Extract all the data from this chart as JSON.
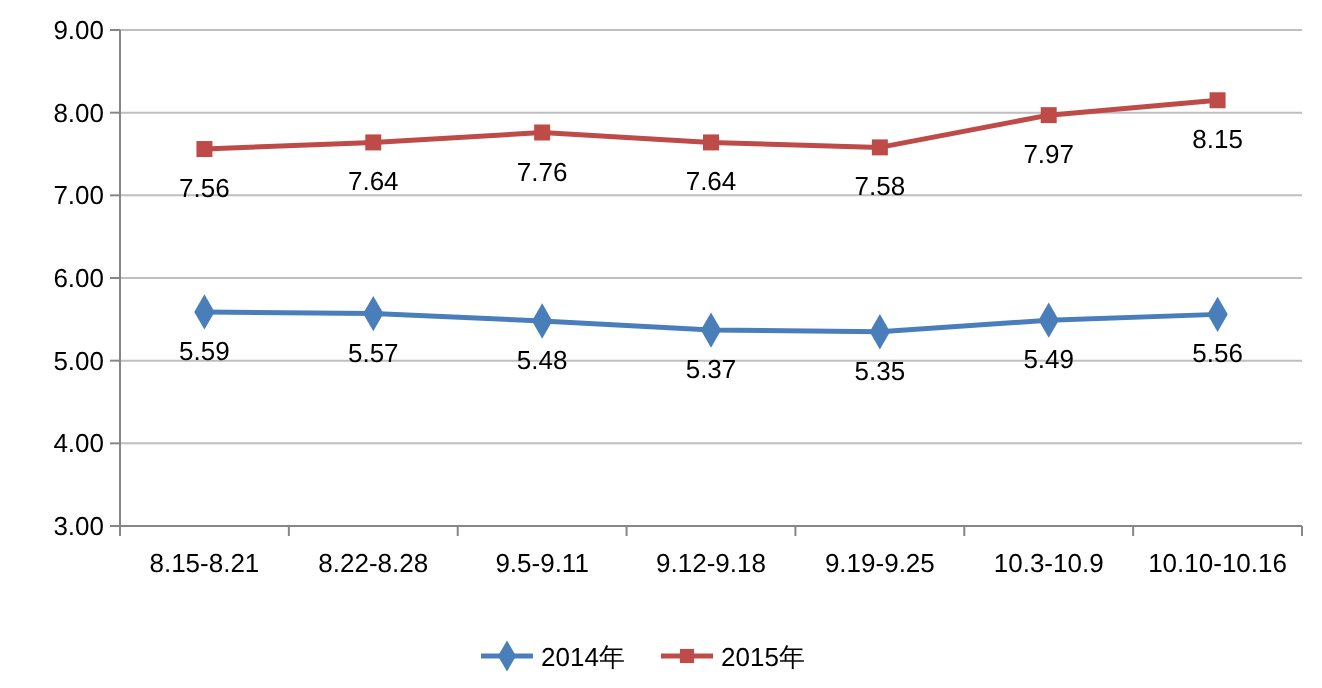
{
  "chart_data": {
    "type": "line",
    "categories": [
      "8.15-8.21",
      "8.22-8.28",
      "9.5-9.11",
      "9.12-9.18",
      "9.19-9.25",
      "10.3-10.9",
      "10.10-10.16"
    ],
    "series": [
      {
        "name": "2014年",
        "color": "#4a7ebb",
        "marker": "diamond",
        "values": [
          5.59,
          5.57,
          5.48,
          5.37,
          5.35,
          5.49,
          5.56
        ]
      },
      {
        "name": "2015年",
        "color": "#be4b48",
        "marker": "square",
        "values": [
          7.56,
          7.64,
          7.76,
          7.64,
          7.58,
          7.97,
          8.15
        ]
      }
    ],
    "ylim": [
      3,
      9
    ],
    "yticks": [
      {
        "value": 3,
        "label": "3.00"
      },
      {
        "value": 4,
        "label": "4.00"
      },
      {
        "value": 5,
        "label": "5.00"
      },
      {
        "value": 6,
        "label": "6.00"
      },
      {
        "value": 7,
        "label": "7.00"
      },
      {
        "value": 8,
        "label": "8.00"
      },
      {
        "value": 9,
        "label": "9.00"
      }
    ],
    "grid": "y",
    "legend": "bottom",
    "data_labels": true,
    "line_style": "solid"
  }
}
